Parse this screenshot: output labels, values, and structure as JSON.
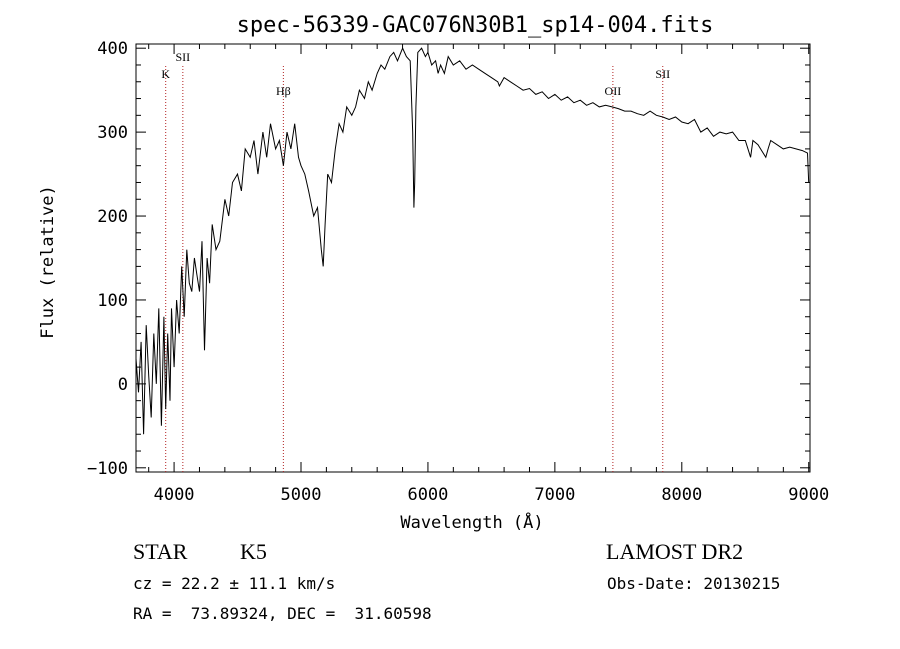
{
  "chart_data": {
    "type": "line",
    "title": "spec-56339-GAC076N30B1_sp14-004.fits",
    "xlabel": "Wavelength (Å)",
    "ylabel": "Flux (relative)",
    "xlim": [
      3700,
      9010
    ],
    "ylim": [
      -105,
      405
    ],
    "xticks": [
      4000,
      5000,
      6000,
      7000,
      8000,
      9000
    ],
    "yticks": [
      -100,
      0,
      100,
      200,
      300,
      400
    ],
    "xtick_labels": [
      "4000",
      "5000",
      "6000",
      "7000",
      "8000",
      "9000"
    ],
    "ytick_labels": [
      "−100",
      "0",
      "100",
      "200",
      "300",
      "400"
    ],
    "line_color": "#000000",
    "marker_color": "#b22222",
    "series": [
      {
        "x": [
          3700,
          3720,
          3740,
          3760,
          3780,
          3800,
          3820,
          3840,
          3860,
          3880,
          3900,
          3920,
          3934,
          3950,
          3968,
          3980,
          4000,
          4020,
          4040,
          4060,
          4080,
          4100,
          4120,
          4140,
          4160,
          4180,
          4200,
          4220,
          4240,
          4260,
          4280,
          4300,
          4330,
          4360,
          4400,
          4430,
          4460,
          4500,
          4530,
          4560,
          4600,
          4630,
          4660,
          4700,
          4730,
          4760,
          4800,
          4830,
          4861,
          4890,
          4920,
          4950,
          4980,
          5000,
          5030,
          5060,
          5100,
          5130,
          5160,
          5175,
          5190,
          5210,
          5240,
          5270,
          5300,
          5330,
          5360,
          5400,
          5430,
          5460,
          5500,
          5530,
          5560,
          5600,
          5630,
          5660,
          5700,
          5730,
          5760,
          5800,
          5830,
          5860,
          5880,
          5889,
          5896,
          5905,
          5920,
          5950,
          5980,
          6000,
          6030,
          6060,
          6080,
          6100,
          6130,
          6160,
          6200,
          6250,
          6300,
          6350,
          6400,
          6450,
          6500,
          6550,
          6563,
          6600,
          6650,
          6700,
          6750,
          6800,
          6850,
          6900,
          6950,
          7000,
          7050,
          7100,
          7150,
          7200,
          7250,
          7300,
          7350,
          7400,
          7450,
          7500,
          7550,
          7600,
          7650,
          7700,
          7750,
          7800,
          7850,
          7900,
          7950,
          8000,
          8050,
          8100,
          8150,
          8200,
          8250,
          8300,
          8350,
          8400,
          8450,
          8500,
          8542,
          8560,
          8600,
          8662,
          8680,
          8700,
          8750,
          8800,
          8850,
          8900,
          8950,
          8990,
          9000
        ],
        "y": [
          30,
          -10,
          50,
          -60,
          70,
          10,
          -40,
          60,
          0,
          90,
          -50,
          80,
          -30,
          60,
          -20,
          90,
          20,
          100,
          60,
          140,
          80,
          160,
          120,
          110,
          150,
          130,
          110,
          170,
          40,
          150,
          120,
          190,
          160,
          170,
          220,
          200,
          240,
          250,
          230,
          280,
          270,
          290,
          250,
          300,
          270,
          310,
          280,
          290,
          260,
          300,
          280,
          310,
          270,
          260,
          250,
          230,
          200,
          210,
          160,
          140,
          190,
          250,
          240,
          280,
          310,
          300,
          330,
          320,
          330,
          350,
          340,
          360,
          350,
          370,
          380,
          375,
          390,
          395,
          385,
          400,
          390,
          385,
          300,
          210,
          240,
          330,
          395,
          400,
          390,
          395,
          380,
          385,
          370,
          380,
          370,
          390,
          380,
          385,
          375,
          380,
          375,
          370,
          365,
          360,
          355,
          365,
          360,
          355,
          350,
          352,
          345,
          348,
          340,
          345,
          338,
          342,
          335,
          338,
          332,
          335,
          330,
          332,
          330,
          328,
          325,
          325,
          322,
          320,
          325,
          320,
          318,
          315,
          318,
          312,
          310,
          315,
          300,
          305,
          295,
          300,
          298,
          300,
          290,
          290,
          270,
          290,
          285,
          270,
          280,
          290,
          285,
          280,
          282,
          280,
          278,
          275,
          240
        ]
      }
    ],
    "line_markers": [
      {
        "label": "K",
        "x": 3934
      },
      {
        "label": "SII",
        "x": 4069
      },
      {
        "label": "Hβ",
        "x": 4861
      },
      {
        "label": "OII",
        "x": 7457
      },
      {
        "label": "SII",
        "x": 7850
      }
    ]
  },
  "footer": {
    "object_type": "STAR",
    "subclass": "K5",
    "survey": "LAMOST DR2",
    "redshift_text": "cz = 22.2 ± 11.1 km/s",
    "obs_date_text": "Obs-Date: 20130215",
    "coords_text": "RA =  73.89324, DEC =  31.60598"
  }
}
